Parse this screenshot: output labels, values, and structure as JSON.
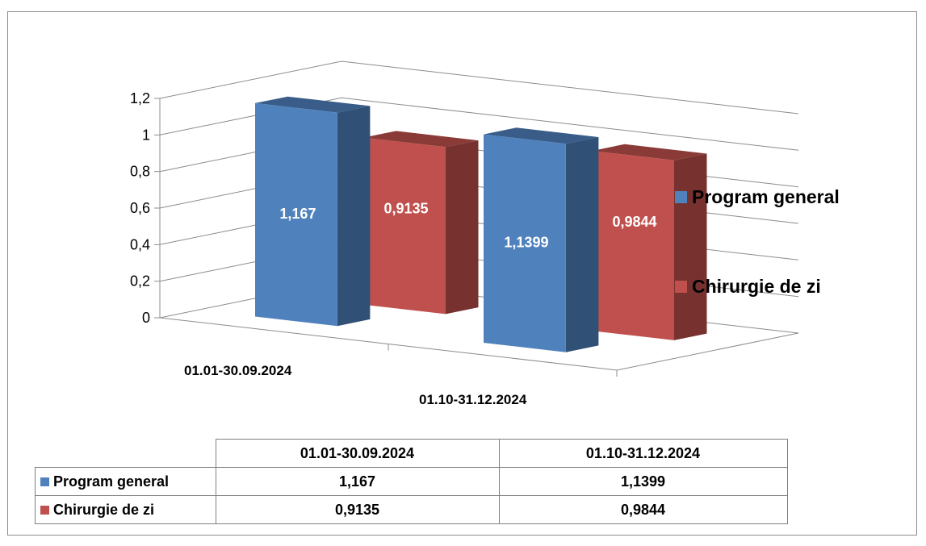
{
  "chart_data": {
    "type": "bar",
    "style": "3d-clustered-column",
    "categories": [
      "01.01-30.09.2024",
      "01.10-31.12.2024"
    ],
    "series": [
      {
        "name": "Program general",
        "values": [
          1.167,
          1.1399
        ],
        "labels": [
          "1,167",
          "1,1399"
        ],
        "color": "#4f81bd"
      },
      {
        "name": "Chirurgie de zi",
        "values": [
          0.9135,
          0.9844
        ],
        "labels": [
          "0,9135",
          "0,9844"
        ],
        "color": "#c0504d"
      }
    ],
    "y_ticks": [
      "0",
      "0,2",
      "0,4",
      "0,6",
      "0,8",
      "1",
      "1,2"
    ],
    "ylim": [
      0,
      1.2
    ],
    "grid": true,
    "legend": "right",
    "data_table": true
  },
  "table": {
    "headers": [
      "01.01-30.09.2024",
      "01.10-31.12.2024"
    ],
    "rows": [
      {
        "name": "Program general",
        "color": "#4f81bd",
        "values": [
          "1,167",
          "1,1399"
        ]
      },
      {
        "name": "Chirurgie de zi",
        "color": "#c0504d",
        "values": [
          "0,9135",
          "0,9844"
        ]
      }
    ]
  }
}
